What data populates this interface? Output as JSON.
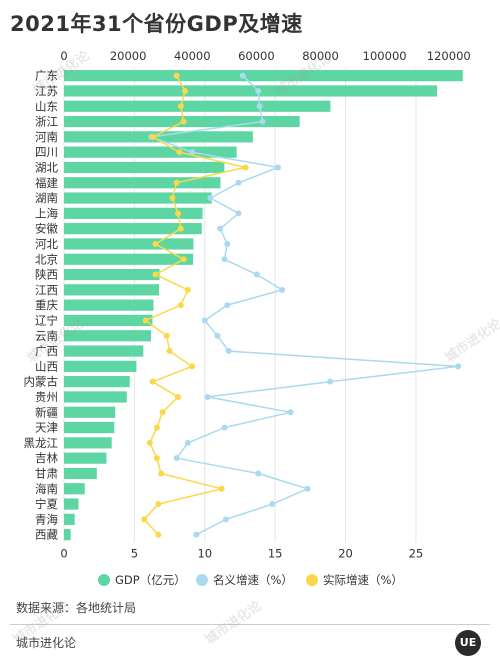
{
  "title": "2021年31个省份GDP及增速",
  "source": "数据来源：各地统计局",
  "brand": "城市进化论",
  "logo_text": "UE",
  "watermark": "城市进化论",
  "colors": {
    "gdp": "#5ed6a4",
    "nominal": "#a9daf0",
    "real": "#fbd84a",
    "axis_text": "#333333",
    "grid": "#e6e6e6"
  },
  "chart_data": {
    "type": "bar",
    "title": "2021年31个省份GDP及增速",
    "categories": [
      "广东",
      "江苏",
      "山东",
      "浙江",
      "河南",
      "四川",
      "湖北",
      "福建",
      "湖南",
      "上海",
      "安徽",
      "河北",
      "北京",
      "陕西",
      "江西",
      "重庆",
      "辽宁",
      "云南",
      "广西",
      "山西",
      "内蒙古",
      "贵州",
      "新疆",
      "天津",
      "黑龙江",
      "吉林",
      "甘肃",
      "海南",
      "宁夏",
      "青海",
      "西藏"
    ],
    "top_axis": {
      "ticks": [
        0,
        20000,
        40000,
        60000,
        80000,
        100000,
        120000
      ],
      "range": [
        0,
        126000
      ]
    },
    "bottom_axis": {
      "ticks": [
        0,
        5,
        10,
        15,
        20,
        25
      ],
      "range": [
        0,
        28.7
      ]
    },
    "series": [
      {
        "name": "GDP（亿元）",
        "type": "bar",
        "axis": "top",
        "values": [
          124370,
          116364,
          83096,
          73516,
          58887,
          53851,
          50013,
          48810,
          46063,
          43215,
          42959,
          40391,
          40270,
          29801,
          29620,
          27894,
          27584,
          27147,
          24741,
          22590,
          20514,
          19586,
          15984,
          15695,
          14879,
          13236,
          10243,
          6475,
          4522,
          3347,
          2080
        ]
      },
      {
        "name": "名义增速（%）",
        "type": "line",
        "axis": "bottom",
        "values": [
          12.7,
          13.8,
          13.9,
          14.1,
          6.2,
          9.1,
          15.2,
          12.4,
          10.4,
          12.4,
          11.1,
          11.6,
          11.4,
          13.7,
          15.5,
          11.6,
          10.0,
          10.9,
          11.7,
          28.0,
          18.9,
          10.2,
          16.1,
          11.4,
          8.8,
          8.0,
          13.8,
          17.3,
          14.8,
          11.5,
          9.4
        ]
      },
      {
        "name": "实际增速（%）",
        "type": "line",
        "axis": "bottom",
        "values": [
          8.0,
          8.6,
          8.3,
          8.5,
          6.3,
          8.2,
          12.9,
          8.0,
          7.7,
          8.1,
          8.3,
          6.5,
          8.5,
          6.5,
          8.8,
          8.3,
          5.8,
          7.3,
          7.5,
          9.1,
          6.3,
          8.1,
          7.0,
          6.6,
          6.1,
          6.6,
          6.9,
          11.2,
          6.7,
          5.7,
          6.7
        ]
      }
    ]
  }
}
